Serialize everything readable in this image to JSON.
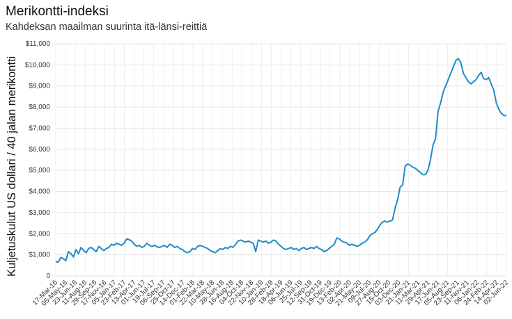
{
  "title": "Merikontti-indeksi",
  "subtitle": "Kahdeksan maailman suurinta itä-länsi-reittiä",
  "chart_data": {
    "type": "line",
    "title": "Merikontti-indeksi",
    "subtitle": "Kahdeksan maailman suurinta itä-länsi-reittiä",
    "ylabel": "Kuljetuskulut US dollari / 40 jalan merikontti",
    "xlabel": "",
    "ylim": [
      0,
      11000
    ],
    "grid": true,
    "line_color": "#1f8ac8",
    "y_ticks": [
      "0",
      "$1,000",
      "$2,000",
      "$3,000",
      "$4,000",
      "$5,000",
      "$6,000",
      "$7,000",
      "$8,000",
      "$9,000",
      "$10,000",
      "$11,000"
    ],
    "x_ticks": [
      "17-Mar-16",
      "05-May-16",
      "23-Jun-16",
      "11-Aug-16",
      "29-Sep-16",
      "17-Nov-16",
      "05-Jan-17",
      "23-Feb-17",
      "13-Apr-17",
      "01-Jun-17",
      "19-Jul-17",
      "06-Sep-17",
      "25-Oct-17",
      "14-Dec-17",
      "01-Feb-18",
      "22-Mar-18",
      "10-May-18",
      "28-Jun-18",
      "16-Aug-18",
      "04-Oct-18",
      "22-Nov-18",
      "10-Jan-19",
      "28-Feb-19",
      "18-Apr-19",
      "06-Jun-19",
      "25-Jul-19",
      "12-Sep-19",
      "31-Oct-19",
      "19-Dec-19",
      "13-Feb-20",
      "02-Apr-20",
      "21-May-20",
      "09-Jul-20",
      "27-Aug-20",
      "15-Oct-20",
      "03-Dec-20",
      "21-Jan-21",
      "11-Mar-21",
      "29-Apr-21",
      "17-Jun-21",
      "05-Aug-21",
      "23-Sep-21",
      "11-Nov-21",
      "06-Jan-22",
      "24-Feb-22",
      "14-Apr-22",
      "02-Jun-22"
    ],
    "series": [
      {
        "values": [
          680,
          650,
          870,
          820,
          720,
          1150,
          1050,
          900,
          1250,
          1050,
          1350,
          1200,
          1100,
          1300,
          1350,
          1250,
          1150,
          1400,
          1300,
          1200,
          1300,
          1350,
          1500,
          1450,
          1550,
          1500,
          1450,
          1550,
          1750,
          1720,
          1650,
          1500,
          1400,
          1450,
          1350,
          1400,
          1550,
          1450,
          1400,
          1450,
          1380,
          1350,
          1400,
          1450,
          1350,
          1500,
          1450,
          1350,
          1400,
          1300,
          1250,
          1150,
          1100,
          1150,
          1300,
          1250,
          1400,
          1450,
          1400,
          1350,
          1300,
          1200,
          1150,
          1100,
          1200,
          1300,
          1250,
          1350,
          1300,
          1400,
          1350,
          1500,
          1650,
          1700,
          1650,
          1600,
          1650,
          1600,
          1550,
          1150,
          1700,
          1650,
          1600,
          1650,
          1550,
          1600,
          1700,
          1650,
          1500,
          1400,
          1300,
          1250,
          1300,
          1350,
          1250,
          1300,
          1200,
          1300,
          1350,
          1250,
          1300,
          1350,
          1300,
          1400,
          1300,
          1250,
          1150,
          1200,
          1300,
          1400,
          1500,
          1800,
          1750,
          1650,
          1600,
          1550,
          1450,
          1500,
          1450,
          1400,
          1450,
          1550,
          1600,
          1700,
          1900,
          2000,
          2050,
          2200,
          2400,
          2550,
          2600,
          2550,
          2600,
          2650,
          3200,
          3600,
          4200,
          4300,
          5200,
          5300,
          5250,
          5150,
          5100,
          5000,
          4900,
          4800,
          4800,
          5000,
          5500,
          6200,
          6500,
          7800,
          8200,
          8700,
          9000,
          9300,
          9600,
          9900,
          10200,
          10300,
          10100,
          9600,
          9400,
          9200,
          9100,
          9200,
          9300,
          9500,
          9650,
          9350,
          9300,
          9400,
          9100,
          8800,
          8200,
          7900,
          7700,
          7600,
          7600
        ]
      }
    ]
  }
}
